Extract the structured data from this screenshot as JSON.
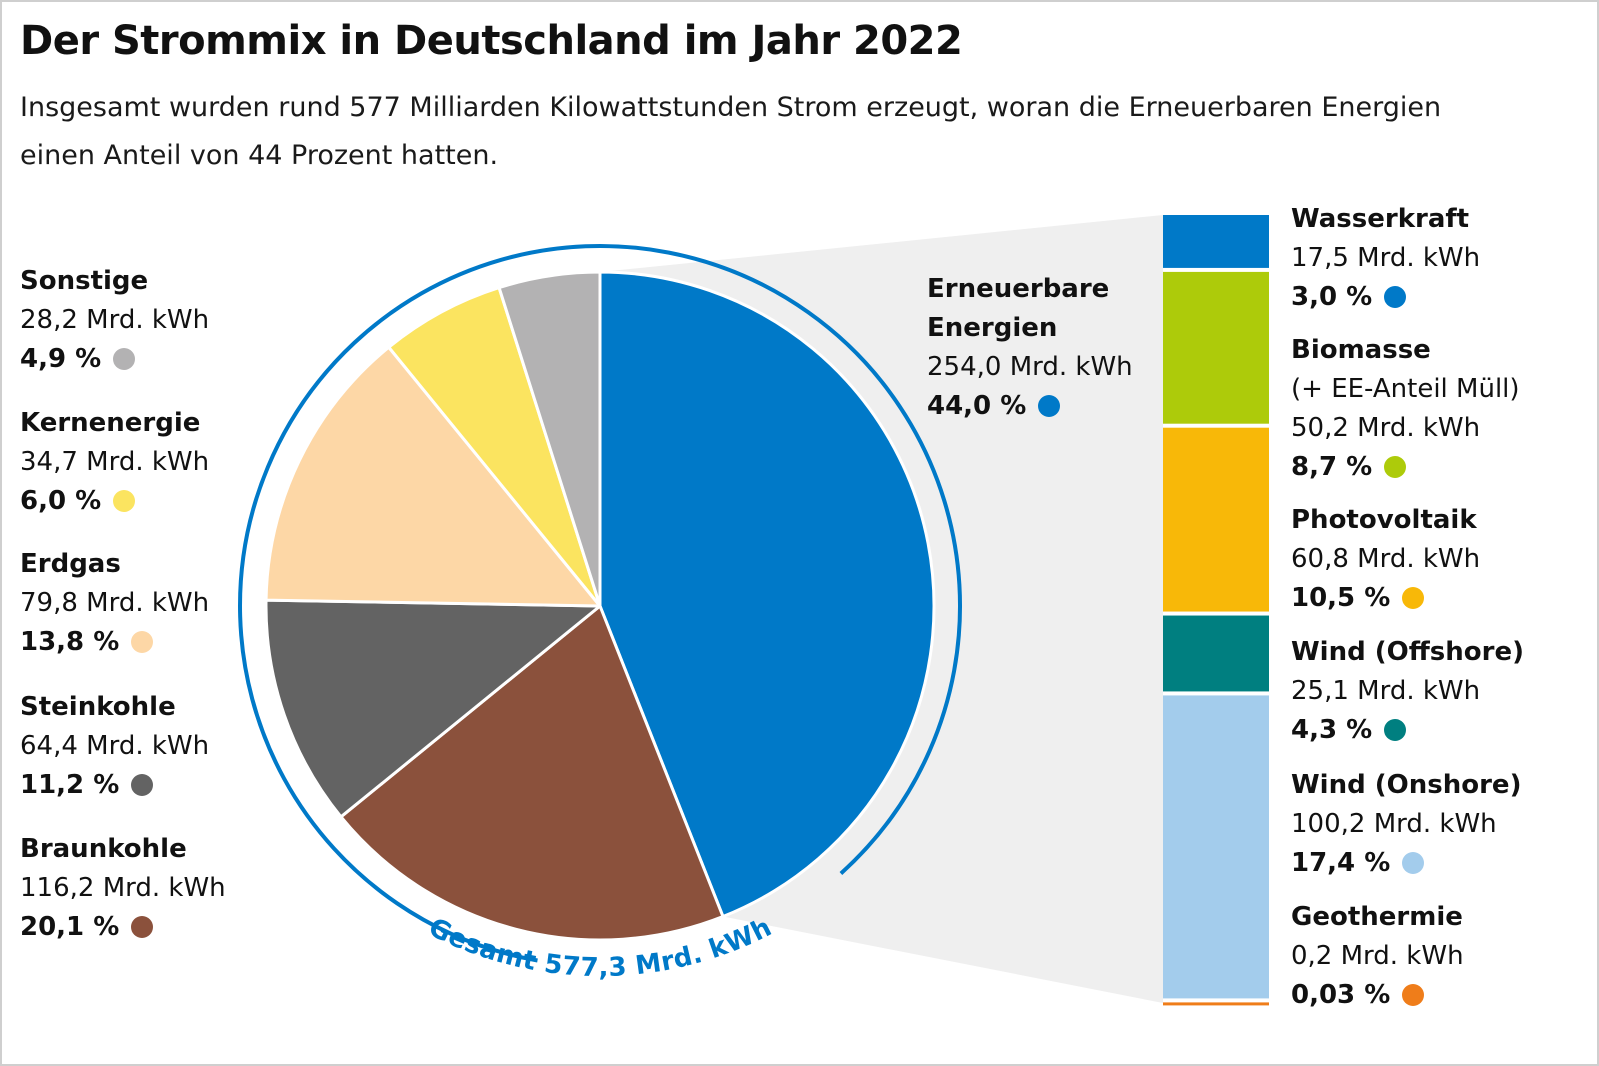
{
  "header": {
    "title": "Der Strommix in Deutschland im Jahr 2022",
    "subtitle": "Insgesamt wurden rund 577 Milliarden Kilowattstunden Strom erzeugt, woran die Erneuerbaren Energien einen Anteil von 44 Prozent hatten."
  },
  "chart_data": [
    {
      "type": "pie",
      "total_label": "Gesamt 577,3 Mrd. kWh",
      "unit": "Mrd. kWh",
      "slices": [
        {
          "name": "Erneuerbare Energien",
          "name_lines": [
            "Erneuerbare",
            "Energien"
          ],
          "value": 254.0,
          "value_text": "254,0 Mrd. kWh",
          "pct": 44.0,
          "pct_text": "44,0 %",
          "color": "#0079c8"
        },
        {
          "name": "Braunkohle",
          "name_lines": [
            "Braunkohle"
          ],
          "value": 116.2,
          "value_text": "116,2 Mrd. kWh",
          "pct": 20.1,
          "pct_text": "20,1 %",
          "color": "#8b513c"
        },
        {
          "name": "Steinkohle",
          "name_lines": [
            "Steinkohle"
          ],
          "value": 64.4,
          "value_text": "64,4 Mrd. kWh",
          "pct": 11.2,
          "pct_text": "11,2 %",
          "color": "#636363"
        },
        {
          "name": "Erdgas",
          "name_lines": [
            "Erdgas"
          ],
          "value": 79.8,
          "value_text": "79,8 Mrd. kWh",
          "pct": 13.8,
          "pct_text": "13,8 %",
          "color": "#fdd7a6"
        },
        {
          "name": "Kernenergie",
          "name_lines": [
            "Kernenergie"
          ],
          "value": 34.7,
          "value_text": "34,7 Mrd. kWh",
          "pct": 6.0,
          "pct_text": "6,0 %",
          "color": "#fbe460"
        },
        {
          "name": "Sonstige",
          "name_lines": [
            "Sonstige"
          ],
          "value": 28.2,
          "value_text": "28,2 Mrd. kWh",
          "pct": 4.9,
          "pct_text": "4,9 %",
          "color": "#b3b2b3"
        }
      ]
    },
    {
      "type": "bar",
      "stacked": true,
      "title": "Erneuerbare Energien",
      "series": [
        {
          "name": "Wasserkraft",
          "name_lines": [
            "Wasserkraft"
          ],
          "value": 17.5,
          "value_text": "17,5 Mrd. kWh",
          "pct": 3.0,
          "pct_text": "3,0 %",
          "color": "#0079c8"
        },
        {
          "name": "Biomasse (+ EE-Anteil Müll)",
          "name_lines": [
            "Biomasse",
            "(+ EE-Anteil Müll)"
          ],
          "value": 50.2,
          "value_text": "50,2 Mrd. kWh",
          "pct": 8.7,
          "pct_text": "8,7 %",
          "color": "#adcb0a"
        },
        {
          "name": "Photovoltaik",
          "name_lines": [
            "Photovoltaik"
          ],
          "value": 60.8,
          "value_text": "60,8 Mrd. kWh",
          "pct": 10.5,
          "pct_text": "10,5 %",
          "color": "#f8b808"
        },
        {
          "name": "Wind (Offshore)",
          "name_lines": [
            "Wind (Offshore)"
          ],
          "value": 25.1,
          "value_text": "25,1 Mrd. kWh",
          "pct": 4.3,
          "pct_text": "4,3 %",
          "color": "#007f80"
        },
        {
          "name": "Wind (Onshore)",
          "name_lines": [
            "Wind (Onshore)"
          ],
          "value": 100.2,
          "value_text": "100,2 Mrd. kWh",
          "pct": 17.4,
          "pct_text": "17,4 %",
          "color": "#a3ccec"
        },
        {
          "name": "Geothermie",
          "name_lines": [
            "Geothermie"
          ],
          "value": 0.2,
          "value_text": "0,2 Mrd. kWh",
          "pct": 0.03,
          "pct_text": "0,03 %",
          "color": "#ef7d1a"
        }
      ]
    }
  ]
}
